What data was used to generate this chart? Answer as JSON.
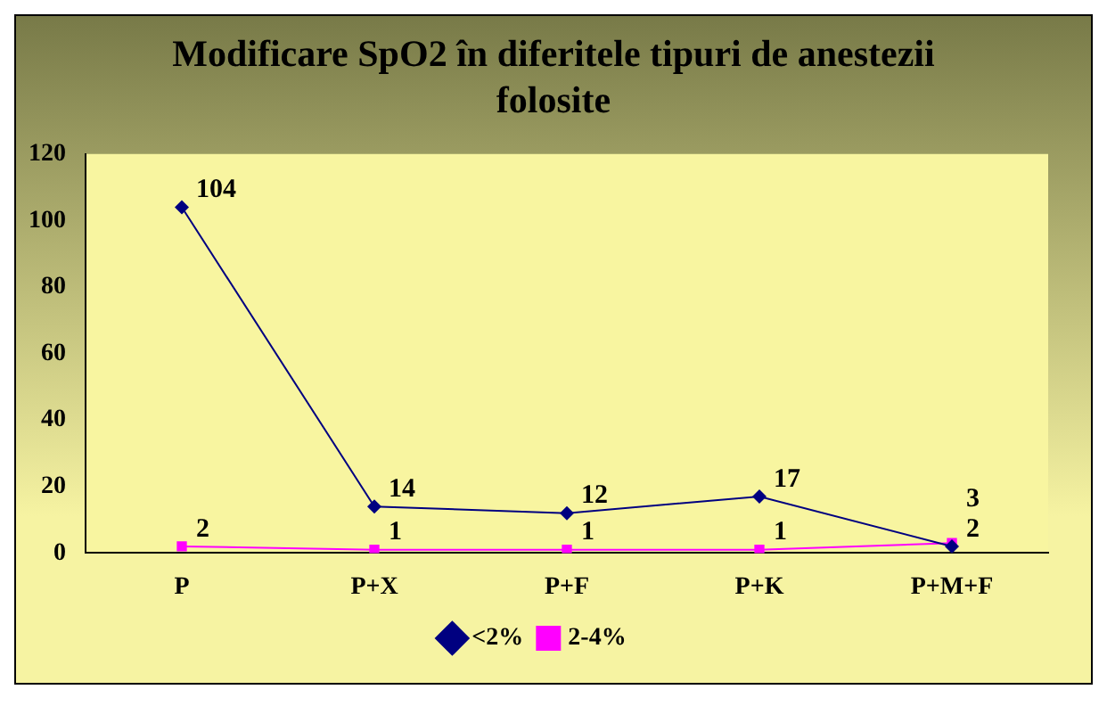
{
  "chart_data": {
    "type": "line",
    "title": "Modificare SpO2 în diferitele tipuri de anestezii folosite",
    "categories": [
      "P",
      "P+X",
      "P+F",
      "P+K",
      "P+M+F"
    ],
    "series": [
      {
        "name": "<2%",
        "color": "#000080",
        "values": [
          104,
          14,
          12,
          17,
          2
        ],
        "marker": "diamond"
      },
      {
        "name": "2-4%",
        "color": "#ff00ff",
        "values": [
          2,
          1,
          1,
          1,
          3
        ],
        "marker": "square"
      }
    ],
    "ylim": [
      0,
      120
    ],
    "yticks": [
      0,
      20,
      40,
      60,
      80,
      100,
      120
    ],
    "grid": false,
    "legend": "bottom",
    "data_labels": true
  }
}
